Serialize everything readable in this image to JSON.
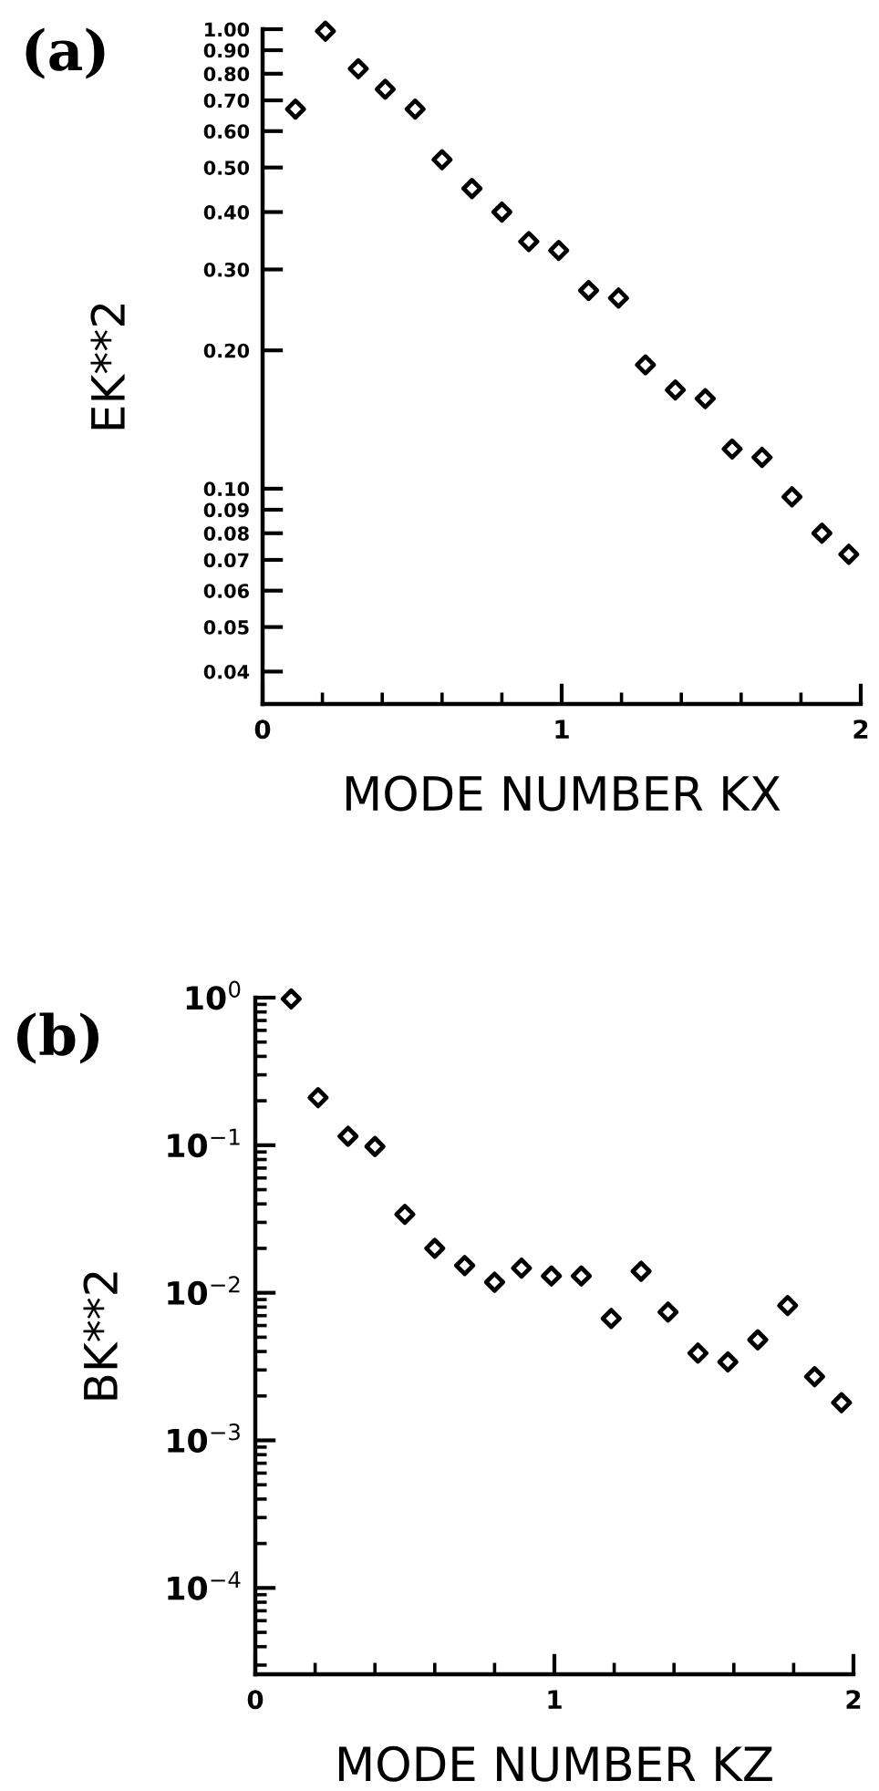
{
  "chart_data": [
    {
      "type": "scatter",
      "title": "(a)",
      "xlabel": "MODE NUMBER KX",
      "ylabel": "EK**2",
      "marker": "diamond",
      "log": true,
      "x": [
        0.11,
        0.21,
        0.32,
        0.41,
        0.51,
        0.6,
        0.7,
        0.8,
        0.89,
        0.99,
        1.09,
        1.19,
        1.28,
        1.38,
        1.48,
        1.57,
        1.67,
        1.77,
        1.87,
        1.96
      ],
      "series": [
        {
          "color": "#000000",
          "values": [
            0.67,
            0.99,
            0.82,
            0.74,
            0.67,
            0.52,
            0.45,
            0.4,
            0.345,
            0.33,
            0.27,
            0.26,
            0.186,
            0.164,
            0.157,
            0.122,
            0.117,
            0.096,
            0.08,
            0.072
          ]
        }
      ],
      "xlim": [
        0,
        2
      ],
      "ylim": [
        0.034,
        1.0
      ],
      "xticks": [
        0,
        {
          "value": 0.2,
          "label": null
        },
        {
          "value": 0.4,
          "label": null
        },
        {
          "value": 0.6,
          "label": null
        },
        {
          "value": 0.8,
          "label": null
        },
        1,
        {
          "value": 1.2,
          "label": null
        },
        {
          "value": 1.4,
          "label": null
        },
        {
          "value": 1.6,
          "label": null
        },
        {
          "value": 1.8,
          "label": null
        },
        2
      ],
      "yticks": [
        {
          "value": 1.0,
          "label": "1.00"
        },
        {
          "value": 0.9,
          "label": "0.90"
        },
        {
          "value": 0.8,
          "label": "0.80"
        },
        {
          "value": 0.7,
          "label": "0.70"
        },
        {
          "value": 0.6,
          "label": "0.60"
        },
        {
          "value": 0.5,
          "label": "0.50"
        },
        {
          "value": 0.4,
          "label": "0.40"
        },
        {
          "value": 0.3,
          "label": "0.30"
        },
        {
          "value": 0.2,
          "label": "0.20"
        },
        {
          "value": 0.1,
          "label": "0.10"
        },
        {
          "value": 0.09,
          "label": "0.09"
        },
        {
          "value": 0.08,
          "label": "0.08"
        },
        {
          "value": 0.07,
          "label": "0.07"
        },
        {
          "value": 0.06,
          "label": "0.06"
        },
        {
          "value": 0.05,
          "label": "0.05"
        },
        {
          "value": 0.04,
          "label": "0.04"
        }
      ]
    },
    {
      "type": "scatter",
      "title": "(b)",
      "xlabel": "MODE NUMBER KZ",
      "ylabel": "BK**2",
      "marker": "diamond",
      "log": true,
      "x": [
        0.12,
        0.21,
        0.31,
        0.4,
        0.5,
        0.6,
        0.7,
        0.8,
        0.89,
        0.99,
        1.09,
        1.19,
        1.29,
        1.38,
        1.48,
        1.58,
        1.68,
        1.78,
        1.87,
        1.96
      ],
      "series": [
        {
          "color": "#000000",
          "values": [
            0.98,
            0.21,
            0.115,
            0.098,
            0.034,
            0.02,
            0.0153,
            0.0118,
            0.0147,
            0.013,
            0.013,
            0.0067,
            0.014,
            0.0074,
            0.0039,
            0.0034,
            0.0048,
            0.0082,
            0.0027,
            0.0018
          ]
        }
      ],
      "xlim": [
        0,
        2
      ],
      "ylim": [
        2.6e-05,
        1
      ],
      "xticks": [
        0,
        {
          "value": 0.2,
          "label": null
        },
        {
          "value": 0.4,
          "label": null
        },
        {
          "value": 0.6,
          "label": null
        },
        {
          "value": 0.8,
          "label": null
        },
        1,
        {
          "value": 1.2,
          "label": null
        },
        {
          "value": 1.4,
          "label": null
        },
        {
          "value": 1.6,
          "label": null
        },
        {
          "value": 1.8,
          "label": null
        },
        2
      ],
      "yticks": [
        {
          "value": 1,
          "label": "10$^{0}$"
        },
        {
          "value": 0.1,
          "label": "10$^{−1}$"
        },
        {
          "value": 0.01,
          "label": "10$^{−2}$"
        },
        {
          "value": 0.001,
          "label": "10$^{−3}$"
        },
        {
          "value": 0.0001,
          "label": "10$^{−4}$"
        },
        {
          "value": 3e-05,
          "label": null
        },
        {
          "value": 4e-05,
          "label": null
        },
        {
          "value": 5e-05,
          "label": null
        },
        {
          "value": 6e-05,
          "label": null
        },
        {
          "value": 7e-05,
          "label": null
        },
        {
          "value": 8e-05,
          "label": null
        },
        {
          "value": 9e-05,
          "label": null
        },
        {
          "value": 0.0002,
          "label": null
        },
        {
          "value": 0.0003,
          "label": null
        },
        {
          "value": 0.0004,
          "label": null
        },
        {
          "value": 0.0005,
          "label": null
        },
        {
          "value": 0.0006,
          "label": null
        },
        {
          "value": 0.0007,
          "label": null
        },
        {
          "value": 0.0008,
          "label": null
        },
        {
          "value": 0.0009,
          "label": null
        },
        {
          "value": 0.002,
          "label": null
        },
        {
          "value": 0.003,
          "label": null
        },
        {
          "value": 0.004,
          "label": null
        },
        {
          "value": 0.005,
          "label": null
        },
        {
          "value": 0.006,
          "label": null
        },
        {
          "value": 0.007,
          "label": null
        },
        {
          "value": 0.008,
          "label": null
        },
        {
          "value": 0.009,
          "label": null
        },
        {
          "value": 0.02,
          "label": null
        },
        {
          "value": 0.03,
          "label": null
        },
        {
          "value": 0.04,
          "label": null
        },
        {
          "value": 0.05,
          "label": null
        },
        {
          "value": 0.06,
          "label": null
        },
        {
          "value": 0.07,
          "label": null
        },
        {
          "value": 0.08,
          "label": null
        },
        {
          "value": 0.09,
          "label": null
        },
        {
          "value": 0.2,
          "label": null
        },
        {
          "value": 0.3,
          "label": null
        },
        {
          "value": 0.4,
          "label": null
        },
        {
          "value": 0.5,
          "label": null
        },
        {
          "value": 0.6,
          "label": null
        },
        {
          "value": 0.7,
          "label": null
        },
        {
          "value": 0.8,
          "label": null
        },
        {
          "value": 0.9,
          "label": null
        }
      ]
    }
  ]
}
